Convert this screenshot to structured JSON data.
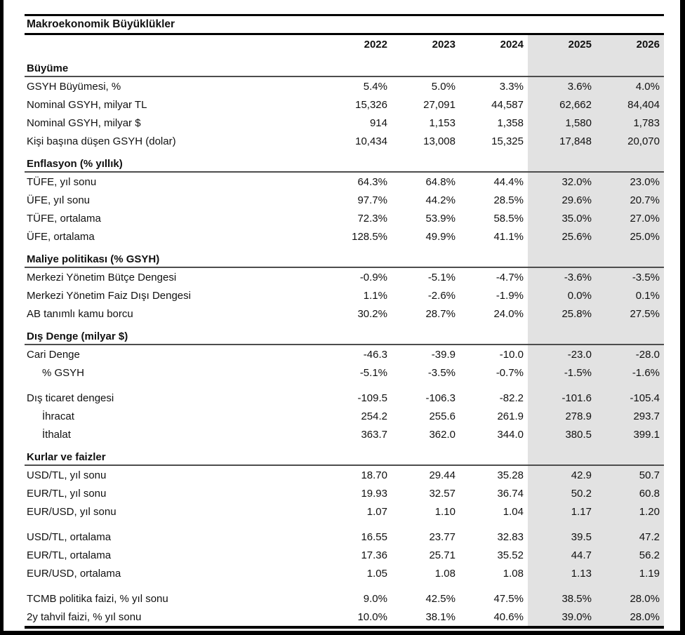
{
  "title": "Makroekonomik Büyüklükler",
  "years": [
    "2022",
    "2023",
    "2024",
    "2025",
    "2026"
  ],
  "forecast_band_color": "#e2e2e2",
  "sections": [
    {
      "header": "Büyüme",
      "rows": [
        {
          "label": "GSYH Büyümesi, %",
          "values": [
            "5.4%",
            "5.0%",
            "3.3%",
            "3.6%",
            "4.0%"
          ]
        },
        {
          "label": "Nominal GSYH, milyar TL",
          "values": [
            "15,326",
            "27,091",
            "44,587",
            "62,662",
            "84,404"
          ]
        },
        {
          "label": "Nominal GSYH, milyar $",
          "values": [
            "914",
            "1,153",
            "1,358",
            "1,580",
            "1,783"
          ]
        },
        {
          "label": "Kişi başına düşen GSYH (dolar)",
          "values": [
            "10,434",
            "13,008",
            "15,325",
            "17,848",
            "20,070"
          ]
        }
      ]
    },
    {
      "header": "Enflasyon (% yıllık)",
      "rows": [
        {
          "label": "TÜFE, yıl sonu",
          "values": [
            "64.3%",
            "64.8%",
            "44.4%",
            "32.0%",
            "23.0%"
          ]
        },
        {
          "label": "ÜFE, yıl sonu",
          "values": [
            "97.7%",
            "44.2%",
            "28.5%",
            "29.6%",
            "20.7%"
          ]
        },
        {
          "label": "TÜFE, ortalama",
          "values": [
            "72.3%",
            "53.9%",
            "58.5%",
            "35.0%",
            "27.0%"
          ]
        },
        {
          "label": "ÜFE, ortalama",
          "values": [
            "128.5%",
            "49.9%",
            "41.1%",
            "25.6%",
            "25.0%"
          ]
        }
      ]
    },
    {
      "header": "Maliye politikası (% GSYH)",
      "rows": [
        {
          "label": "Merkezi Yönetim Bütçe Dengesi",
          "values": [
            "-0.9%",
            "-5.1%",
            "-4.7%",
            "-3.6%",
            "-3.5%"
          ]
        },
        {
          "label": "Merkezi Yönetim Faiz Dışı Dengesi",
          "values": [
            "1.1%",
            "-2.6%",
            "-1.9%",
            "0.0%",
            "0.1%"
          ]
        },
        {
          "label": "AB tanımlı kamu borcu",
          "values": [
            "30.2%",
            "28.7%",
            "24.0%",
            "25.8%",
            "27.5%"
          ]
        }
      ]
    },
    {
      "header": "Dış Denge (milyar $)",
      "rows": [
        {
          "label": "Cari Denge",
          "values": [
            "-46.3",
            "-39.9",
            "-10.0",
            "-23.0",
            "-28.0"
          ]
        },
        {
          "label": "% GSYH",
          "indent": true,
          "values": [
            "-5.1%",
            "-3.5%",
            "-0.7%",
            "-1.5%",
            "-1.6%"
          ]
        },
        {
          "gap": true
        },
        {
          "label": "Dış ticaret dengesi",
          "values": [
            "-109.5",
            "-106.3",
            "-82.2",
            "-101.6",
            "-105.4"
          ]
        },
        {
          "label": "İhracat",
          "indent": true,
          "values": [
            "254.2",
            "255.6",
            "261.9",
            "278.9",
            "293.7"
          ]
        },
        {
          "label": "İthalat",
          "indent": true,
          "values": [
            "363.7",
            "362.0",
            "344.0",
            "380.5",
            "399.1"
          ]
        }
      ]
    },
    {
      "header": "Kurlar ve faizler",
      "rows": [
        {
          "label": "USD/TL, yıl sonu",
          "values": [
            "18.70",
            "29.44",
            "35.28",
            "42.9",
            "50.7"
          ]
        },
        {
          "label": "EUR/TL, yıl sonu",
          "values": [
            "19.93",
            "32.57",
            "36.74",
            "50.2",
            "60.8"
          ]
        },
        {
          "label": "EUR/USD, yıl sonu",
          "values": [
            "1.07",
            "1.10",
            "1.04",
            "1.17",
            "1.20"
          ]
        },
        {
          "gap": true
        },
        {
          "label": "USD/TL, ortalama",
          "values": [
            "16.55",
            "23.77",
            "32.83",
            "39.5",
            "47.2"
          ]
        },
        {
          "label": "EUR/TL, ortalama",
          "values": [
            "17.36",
            "25.71",
            "35.52",
            "44.7",
            "56.2"
          ]
        },
        {
          "label": "EUR/USD, ortalama",
          "values": [
            "1.05",
            "1.08",
            "1.08",
            "1.13",
            "1.19"
          ]
        },
        {
          "gap": true
        },
        {
          "label": "TCMB politika faizi, % yıl sonu",
          "values": [
            "9.0%",
            "42.5%",
            "47.5%",
            "38.5%",
            "28.0%"
          ]
        },
        {
          "label": "2y tahvil faizi, % yıl sonu",
          "values": [
            "10.0%",
            "38.1%",
            "40.6%",
            "39.0%",
            "28.0%"
          ]
        }
      ]
    }
  ]
}
